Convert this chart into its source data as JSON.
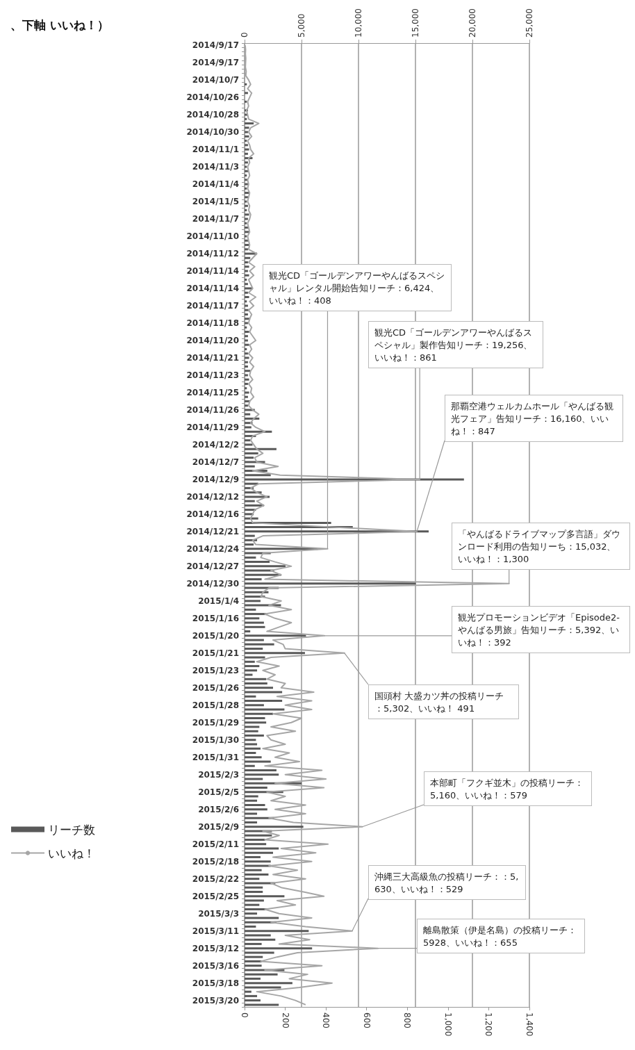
{
  "chart_data": {
    "type": "bar",
    "orientation": "horizontal",
    "title": "、下軸 いいね！）",
    "categories": [
      "2014/9/17",
      null,
      null,
      null,
      "2014/9/17",
      null,
      null,
      null,
      "2014/10/7",
      null,
      null,
      null,
      "2014/10/26",
      null,
      null,
      null,
      "2014/10/28",
      null,
      null,
      null,
      "2014/10/30",
      null,
      null,
      null,
      "2014/11/1",
      null,
      null,
      null,
      "2014/11/3",
      null,
      null,
      null,
      "2014/11/4",
      null,
      null,
      null,
      "2014/11/5",
      null,
      null,
      null,
      "2014/11/7",
      null,
      null,
      null,
      "2014/11/10",
      null,
      null,
      null,
      "2014/11/12",
      null,
      null,
      null,
      "2014/11/14",
      null,
      null,
      null,
      "2014/11/14",
      null,
      null,
      null,
      "2014/11/17",
      null,
      null,
      null,
      "2014/11/18",
      null,
      null,
      null,
      "2014/11/20",
      null,
      null,
      null,
      "2014/11/21",
      null,
      null,
      null,
      "2014/11/23",
      null,
      null,
      null,
      "2014/11/25",
      null,
      null,
      null,
      "2014/11/26",
      null,
      null,
      null,
      "2014/11/29",
      null,
      null,
      null,
      "2014/12/2",
      null,
      null,
      null,
      "2014/12/7",
      null,
      null,
      null,
      "2014/12/9",
      null,
      null,
      null,
      "2014/12/12",
      null,
      null,
      null,
      "2014/12/16",
      null,
      null,
      null,
      "2014/12/21",
      null,
      null,
      null,
      "2014/12/24",
      null,
      null,
      null,
      "2014/12/27",
      null,
      null,
      null,
      "2014/12/30",
      null,
      null,
      null,
      "2015/1/4",
      null,
      null,
      null,
      "2015/1/16",
      null,
      null,
      null,
      "2015/1/20",
      null,
      null,
      null,
      "2015/1/21",
      null,
      null,
      null,
      "2015/1/23",
      null,
      null,
      null,
      "2015/1/26",
      null,
      null,
      null,
      "2015/1/28",
      null,
      null,
      null,
      "2015/1/29",
      null,
      null,
      null,
      "2015/1/30",
      null,
      null,
      null,
      "2015/1/31",
      null,
      null,
      null,
      "2015/2/3",
      null,
      null,
      null,
      "2015/2/5",
      null,
      null,
      null,
      "2015/2/6",
      null,
      null,
      null,
      "2015/2/9",
      null,
      null,
      null,
      "2015/2/11",
      null,
      null,
      null,
      "2015/2/18",
      null,
      null,
      null,
      "2015/2/22",
      null,
      null,
      null,
      "2015/2/25",
      null,
      null,
      null,
      "2015/3/3",
      null,
      null,
      null,
      "2015/3/11",
      null,
      null,
      null,
      "2015/3/12",
      null,
      null,
      null,
      "2015/3/16",
      null,
      null,
      null,
      "2015/3/18",
      null,
      null,
      null,
      "2015/3/20",
      null
    ],
    "series": [
      {
        "name": "リーチ数",
        "axis": "x2",
        "color": "#595959",
        "values": [
          0,
          0,
          0,
          0,
          0,
          0,
          0,
          0,
          0,
          200,
          0,
          300,
          0,
          200,
          0,
          300,
          300,
          200,
          800,
          400,
          300,
          400,
          200,
          300,
          400,
          300,
          700,
          300,
          200,
          300,
          200,
          300,
          300,
          200,
          400,
          300,
          200,
          300,
          200,
          400,
          300,
          200,
          300,
          400,
          200,
          300,
          400,
          300,
          1100,
          500,
          300,
          400,
          300,
          400,
          200,
          300,
          700,
          300,
          400,
          200,
          300,
          400,
          300,
          500,
          300,
          200,
          400,
          300,
          300,
          400,
          200,
          300,
          400,
          300,
          300,
          500,
          300,
          400,
          300,
          200,
          400,
          300,
          500,
          300,
          900,
          500,
          1300,
          700,
          600,
          2400,
          1000,
          500,
          700,
          2800,
          1200,
          800,
          1800,
          900,
          2000,
          2300,
          19256,
          1200,
          800,
          1500,
          2200,
          900,
          1700,
          1000,
          800,
          1200,
          7600,
          9500,
          16160,
          900,
          1100,
          800,
          6424,
          2300,
          1000,
          2200,
          3600,
          2600,
          3200,
          1500,
          15032,
          3000,
          2100,
          1800,
          1400,
          3200,
          1000,
          1900,
          1300,
          1700,
          1800,
          500,
          5392,
          1700,
          2600,
          1600,
          5302,
          1800,
          900,
          1300,
          1100,
          700,
          1900,
          2000,
          2500,
          3300,
          1000,
          3300,
          1700,
          3500,
          2500,
          1800,
          1900,
          1300,
          1200,
          1700,
          1000,
          1100,
          1400,
          1000,
          1500,
          2300,
          900,
          2800,
          3000,
          1600,
          5000,
          2000,
          3400,
          1200,
          1100,
          1800,
          2000,
          1100,
          2600,
          1100,
          5160,
          2400,
          2400,
          1800,
          1900,
          3000,
          2500,
          1400,
          2300,
          2300,
          1500,
          2100,
          1300,
          2700,
          1600,
          1600,
          3500,
          1700,
          1300,
          2000,
          1100,
          3000,
          2800,
          1000,
          5630,
          2300,
          2700,
          1500,
          5928,
          2600,
          1600,
          1500,
          1500,
          3500,
          2900,
          1400,
          4200,
          3200,
          600,
          1100,
          1400,
          3000
        ]
      },
      {
        "name": "いいね！",
        "type": "line",
        "color": "#a6a6a6",
        "values": [
          3,
          5,
          4,
          6,
          5,
          4,
          8,
          6,
          20,
          30,
          15,
          35,
          25,
          15,
          20,
          10,
          15,
          20,
          70,
          30,
          20,
          35,
          15,
          25,
          30,
          45,
          20,
          25,
          15,
          20,
          25,
          15,
          20,
          15,
          25,
          20,
          15,
          25,
          20,
          30,
          25,
          15,
          20,
          25,
          15,
          20,
          25,
          20,
          60,
          40,
          20,
          50,
          25,
          45,
          20,
          30,
          40,
          20,
          55,
          25,
          45,
          20,
          35,
          25,
          20,
          35,
          25,
          40,
          55,
          25,
          35,
          20,
          40,
          25,
          45,
          30,
          25,
          40,
          20,
          35,
          30,
          45,
          25,
          20,
          40,
          70,
          45,
          30,
          55,
          100,
          40,
          30,
          45,
          60,
          90,
          50,
          60,
          165,
          40,
          175,
          861,
          70,
          30,
          60,
          110,
          60,
          95,
          50,
          40,
          30,
          40,
          440,
          847,
          90,
          40,
          55,
          408,
          90,
          80,
          150,
          230,
          130,
          180,
          100,
          1300,
          120,
          90,
          80,
          180,
          120,
          230,
          100,
          150,
          230,
          170,
          110,
          392,
          140,
          190,
          200,
          491,
          130,
          60,
          170,
          90,
          150,
          110,
          200,
          180,
          340,
          160,
          330,
          200,
          330,
          140,
          280,
          230,
          130,
          250,
          110,
          130,
          200,
          90,
          220,
          150,
          270,
          100,
          380,
          200,
          400,
          150,
          390,
          110,
          200,
          130,
          300,
          150,
          300,
          120,
          240,
          579,
          90,
          170,
          100,
          410,
          180,
          350,
          140,
          330,
          120,
          260,
          140,
          300,
          130,
          180,
          290,
          390,
          160,
          250,
          100,
          170,
          330,
          130,
          300,
          529,
          200,
          320,
          170,
          655,
          260,
          160,
          80,
          380,
          100,
          310,
          220,
          430,
          270,
          60,
          180,
          250,
          300
        ]
      }
    ],
    "xlim": [
      0,
      1400
    ],
    "xticks": [
      0,
      200,
      400,
      600,
      800,
      {
        "value": 1000,
        "label": "1,000"
      },
      {
        "value": 1200,
        "label": "1,200"
      },
      {
        "value": 1400,
        "label": "1,400"
      }
    ],
    "x2lim": [
      0,
      25000
    ],
    "x2ticks": [
      0,
      {
        "value": 5000,
        "label": "5,000"
      },
      {
        "value": 10000,
        "label": "10,000"
      },
      {
        "value": 15000,
        "label": "15,000"
      },
      {
        "value": 20000,
        "label": "20,000"
      },
      {
        "value": 25000,
        "label": "25,000"
      }
    ],
    "grid": "x2",
    "legend": "left",
    "marker": "none",
    "annotations": [
      {
        "text": "観光CD「ゴールデンアワーやんばるスペシャル」レンタル開始告知リーチ：6,424、いいね！：408",
        "x": 408,
        "y": "2014/12/24"
      },
      {
        "text": "観光CD「ゴールデンアワーやんばるスペシャル」製作告知リーチ：19,256、いいね！：861",
        "x": 861,
        "y": "2014/12/9"
      },
      {
        "text": "那覇空港ウェルカムホール「やんばる観光フェア」告知リーチ：16,160、いいね！：847",
        "x": 847,
        "y": "2014/12/21"
      },
      {
        "text": "「やんばるドライブマップ多言語」ダウンロード利用の告知リーち：15,032、いいね！：1,300",
        "x": 1300,
        "y": "2014/12/30"
      },
      {
        "text": "観光プロモーションビデオ「Episode2-やんばる男旅」告知リーチ：5,392、いいね！：392",
        "x": 392,
        "y": "2015/1/20"
      },
      {
        "text": "国頭村 大盛カツ丼の投稿リーチ：5,302、いいね！ 491",
        "x": 491,
        "y": "2015/1/21"
      },
      {
        "text": "本部町「フクギ並木」の投稿リーチ：5,160、いいね！：579",
        "x": 579,
        "y": "2015/2/9"
      },
      {
        "text": "沖縄三大高級魚の投稿リーチ：：5,630、いいね！：529",
        "x": 529,
        "y": "2015/3/11"
      },
      {
        "text": "離島散策（伊是名島）の投稿リーチ：5928、いいね！：655",
        "x": 655,
        "y": "2015/3/12"
      }
    ]
  }
}
